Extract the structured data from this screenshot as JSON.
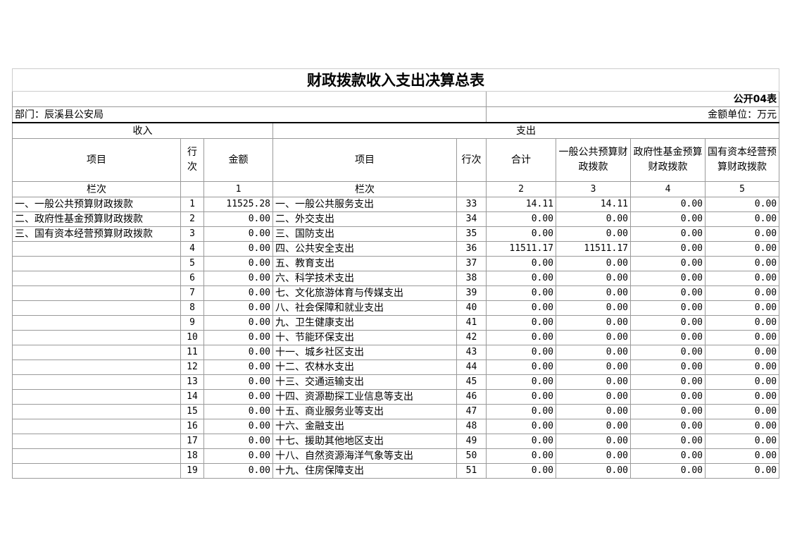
{
  "title": "财政拨款收入支出决算总表",
  "form_code": "公开04表",
  "department": "部门：辰溪县公安局",
  "unit": "金额单位：万元",
  "sections": {
    "income": "收入",
    "expense": "支出"
  },
  "headers": {
    "item": "项目",
    "line_no": "行次",
    "amount": "金额",
    "exp_item": "项目",
    "exp_line_no": "行次",
    "total": "合计",
    "general": "一般公共预算财政拨款",
    "gov_fund": "政府性基金预算财政拨款",
    "state_capital": "国有资本经营预算财政拨款"
  },
  "column_index": {
    "label": "栏次",
    "c1": "1",
    "exp_label": "栏次",
    "c2": "2",
    "c3": "3",
    "c4": "4",
    "c5": "5"
  },
  "rows": [
    [
      "一、一般公共预算财政拨款",
      "1",
      "11525.28",
      "一、一般公共服务支出",
      "33",
      "14.11",
      "14.11",
      "0.00",
      "0.00"
    ],
    [
      "二、政府性基金预算财政拨款",
      "2",
      "0.00",
      "二、外交支出",
      "34",
      "0.00",
      "0.00",
      "0.00",
      "0.00"
    ],
    [
      "三、国有资本经营预算财政拨款",
      "3",
      "0.00",
      "三、国防支出",
      "35",
      "0.00",
      "0.00",
      "0.00",
      "0.00"
    ],
    [
      "",
      "4",
      "0.00",
      "四、公共安全支出",
      "36",
      "11511.17",
      "11511.17",
      "0.00",
      "0.00"
    ],
    [
      "",
      "5",
      "0.00",
      "五、教育支出",
      "37",
      "0.00",
      "0.00",
      "0.00",
      "0.00"
    ],
    [
      "",
      "6",
      "0.00",
      "六、科学技术支出",
      "38",
      "0.00",
      "0.00",
      "0.00",
      "0.00"
    ],
    [
      "",
      "7",
      "0.00",
      "七、文化旅游体育与传媒支出",
      "39",
      "0.00",
      "0.00",
      "0.00",
      "0.00"
    ],
    [
      "",
      "8",
      "0.00",
      "八、社会保障和就业支出",
      "40",
      "0.00",
      "0.00",
      "0.00",
      "0.00"
    ],
    [
      "",
      "9",
      "0.00",
      "九、卫生健康支出",
      "41",
      "0.00",
      "0.00",
      "0.00",
      "0.00"
    ],
    [
      "",
      "10",
      "0.00",
      "十、节能环保支出",
      "42",
      "0.00",
      "0.00",
      "0.00",
      "0.00"
    ],
    [
      "",
      "11",
      "0.00",
      "十一、城乡社区支出",
      "43",
      "0.00",
      "0.00",
      "0.00",
      "0.00"
    ],
    [
      "",
      "12",
      "0.00",
      "十二、农林水支出",
      "44",
      "0.00",
      "0.00",
      "0.00",
      "0.00"
    ],
    [
      "",
      "13",
      "0.00",
      "十三、交通运输支出",
      "45",
      "0.00",
      "0.00",
      "0.00",
      "0.00"
    ],
    [
      "",
      "14",
      "0.00",
      "十四、资源勘探工业信息等支出",
      "46",
      "0.00",
      "0.00",
      "0.00",
      "0.00"
    ],
    [
      "",
      "15",
      "0.00",
      "十五、商业服务业等支出",
      "47",
      "0.00",
      "0.00",
      "0.00",
      "0.00"
    ],
    [
      "",
      "16",
      "0.00",
      "十六、金融支出",
      "48",
      "0.00",
      "0.00",
      "0.00",
      "0.00"
    ],
    [
      "",
      "17",
      "0.00",
      "十七、援助其他地区支出",
      "49",
      "0.00",
      "0.00",
      "0.00",
      "0.00"
    ],
    [
      "",
      "18",
      "0.00",
      "十八、自然资源海洋气象等支出",
      "50",
      "0.00",
      "0.00",
      "0.00",
      "0.00"
    ],
    [
      "",
      "19",
      "0.00",
      "十九、住房保障支出",
      "51",
      "0.00",
      "0.00",
      "0.00",
      "0.00"
    ]
  ]
}
